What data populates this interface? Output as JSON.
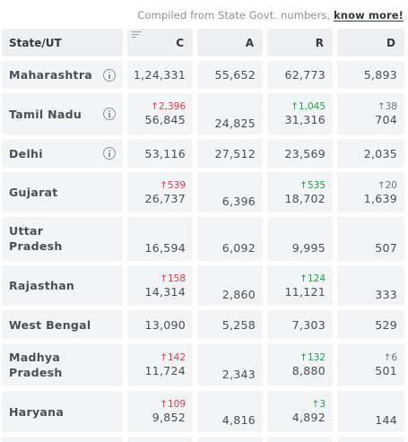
{
  "source": {
    "text": "Compiled from State Govt. numbers,",
    "link": "know more!"
  },
  "headers": {
    "state": "State/UT",
    "c": "C",
    "a": "A",
    "r": "R",
    "d": "D"
  },
  "rows": [
    {
      "state": "Maharashtra",
      "info": true,
      "c": "1,24,331",
      "a": "55,652",
      "r": "62,773",
      "d": "5,893"
    },
    {
      "state": "Tamil Nadu",
      "info": true,
      "c_delta": "↑2,396",
      "c": "56,845",
      "a": "24,825",
      "r_delta": "↑1,045",
      "r": "31,316",
      "d_delta": "↑38",
      "d": "704"
    },
    {
      "state": "Delhi",
      "info": true,
      "c": "53,116",
      "a": "27,512",
      "r": "23,569",
      "d": "2,035"
    },
    {
      "state": "Gujarat",
      "c_delta": "↑539",
      "c": "26,737",
      "a": "6,396",
      "r_delta": "↑535",
      "r": "18,702",
      "d_delta": "↑20",
      "d": "1,639"
    },
    {
      "state": "Uttar Pradesh",
      "state_line1": "Uttar",
      "state_line2": "Pradesh",
      "c": "16,594",
      "a": "6,092",
      "r": "9,995",
      "d": "507"
    },
    {
      "state": "Rajasthan",
      "c_delta": "↑158",
      "c": "14,314",
      "a": "2,860",
      "r_delta": "↑124",
      "r": "11,121",
      "d": "333"
    },
    {
      "state": "West Bengal",
      "c": "13,090",
      "a": "5,258",
      "r": "7,303",
      "d": "529"
    },
    {
      "state": "Madhya Pradesh",
      "state_line1": "Madhya",
      "state_line2": "Pradesh",
      "c_delta": "↑142",
      "c": "11,724",
      "a": "2,343",
      "r_delta": "↑132",
      "r": "8,880",
      "d_delta": "↑6",
      "d": "501"
    },
    {
      "state": "Haryana",
      "c_delta": "↑109",
      "c": "9,852",
      "a": "4,816",
      "r_delta": "↑3",
      "r": "4,892",
      "d": "144"
    }
  ],
  "colors": {
    "confirmed_delta": "#e8374b",
    "recovered_delta": "#1ea34b",
    "deceased_delta": "#6c757d",
    "cell_bg": "#f3f4f5"
  },
  "icons": {
    "info": "info-circle-icon",
    "sort": "sort-lines-icon"
  }
}
